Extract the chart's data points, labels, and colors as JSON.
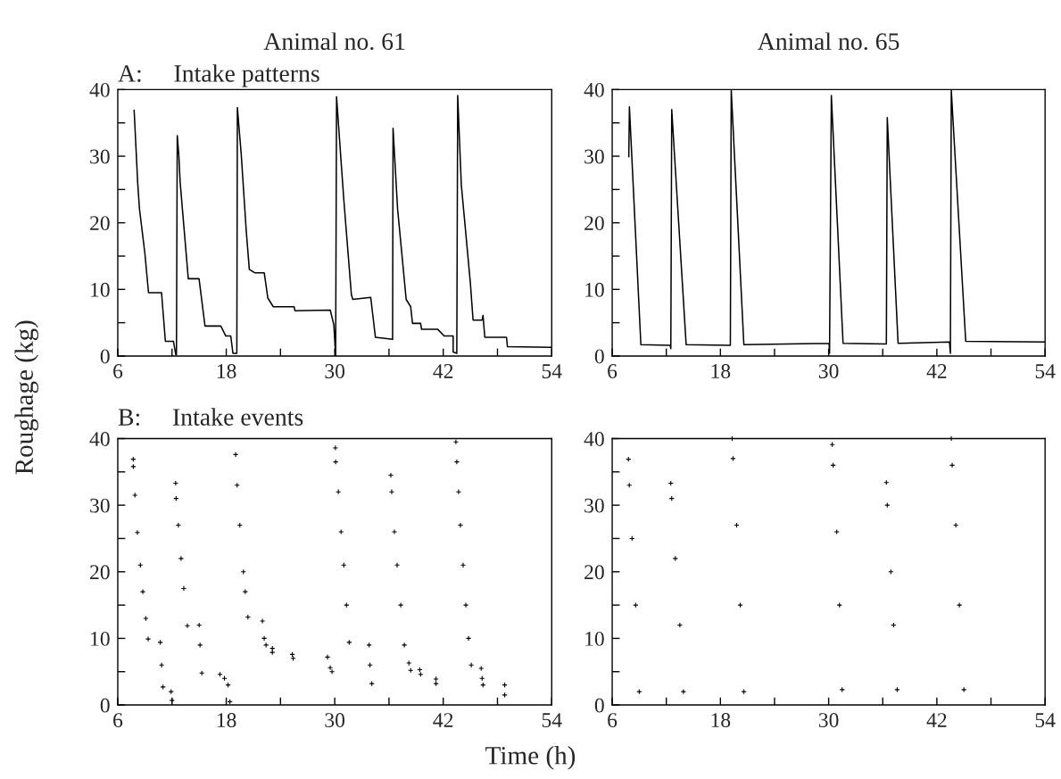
{
  "chart_data": [
    {
      "type": "line",
      "title": "Animal no. 61",
      "subtitle": "A:     Intake patterns",
      "ylabel": "Roughage (kg)",
      "xlim": [
        6,
        54
      ],
      "xticks": [
        6,
        {
          "value": 12,
          "label": null
        },
        18,
        {
          "value": 24,
          "label": null
        },
        30,
        {
          "value": 36,
          "label": null
        },
        42,
        {
          "value": 48,
          "label": null
        },
        54
      ],
      "ylim": [
        0,
        40
      ],
      "yticks": [
        0,
        {
          "value": 5,
          "label": null
        },
        10,
        {
          "value": 15,
          "label": null
        },
        20,
        {
          "value": 25,
          "label": null
        },
        30,
        {
          "value": 35,
          "label": null
        },
        40
      ],
      "grid": false,
      "legend": false,
      "marker": "none",
      "line_style": "solid",
      "series": [
        {
          "color": "#000000",
          "x": [
            7.81,
            8.2,
            8.4,
            9.0,
            9.4,
            10.84,
            11.27,
            12.16,
            12.42,
            12.49,
            12.58,
            12.75,
            12.9,
            13.34,
            13.8,
            14.99,
            15.65,
            17.4,
            17.95,
            18.5,
            18.74,
            19.1,
            19.17,
            19.23,
            19.66,
            20.2,
            20.55,
            21.14,
            22.2,
            22.6,
            23.2,
            25.5,
            25.6,
            29.5,
            29.9,
            30.1,
            30.2,
            31.0,
            31.84,
            32.0,
            33.98,
            34.5,
            36.4,
            36.45,
            36.95,
            37.9,
            38.4,
            38.6,
            39.5,
            39.6,
            41.4,
            42.1,
            43.1,
            43.1,
            43.5,
            43.6,
            44.0,
            45.0,
            45.3,
            46.3,
            46.4,
            46.6,
            49.0,
            49.1,
            54.0
          ],
          "values": [
            36.9,
            26.1,
            22.1,
            15.4,
            9.5,
            9.5,
            2.2,
            2.2,
            0.2,
            0.2,
            33.1,
            30.2,
            26.1,
            19.0,
            11.6,
            11.6,
            4.5,
            4.5,
            3.0,
            3.0,
            0.4,
            0.4,
            0.4,
            37.3,
            30.2,
            19.0,
            13.0,
            12.5,
            12.5,
            8.7,
            7.4,
            7.4,
            6.8,
            6.9,
            4.7,
            0,
            38.9,
            23.5,
            9.2,
            8.5,
            8.8,
            2.8,
            2.5,
            34.2,
            22.1,
            8.5,
            7.4,
            4.9,
            4.9,
            4.0,
            4.0,
            3.0,
            3.0,
            0.6,
            0.4,
            39.1,
            25.7,
            11.0,
            5.4,
            5.4,
            6.1,
            2.8,
            2.8,
            1.4,
            1.3
          ]
        }
      ]
    },
    {
      "type": "line",
      "title": "Animal no. 65",
      "xlim": [
        6,
        54
      ],
      "xticks": [
        6,
        {
          "value": 12,
          "label": null
        },
        18,
        {
          "value": 24,
          "label": null
        },
        30,
        {
          "value": 36,
          "label": null
        },
        42,
        {
          "value": 48,
          "label": null
        },
        54
      ],
      "ylim": [
        0,
        40
      ],
      "yticks": [
        0,
        {
          "value": 5,
          "label": null
        },
        10,
        {
          "value": 15,
          "label": null
        },
        20,
        {
          "value": 25,
          "label": null
        },
        30,
        {
          "value": 35,
          "label": null
        },
        40
      ],
      "grid": false,
      "legend": false,
      "marker": "none",
      "line_style": "solid",
      "series": [
        {
          "color": "#000000",
          "x": [
            7.84,
            7.91,
            9.18,
            12.44,
            12.5,
            12.6,
            14.2,
            19.1,
            19.2,
            20.6,
            30.05,
            30.1,
            30.3,
            31.6,
            36.4,
            36.5,
            37.7,
            43.4,
            43.5,
            43.6,
            45.2,
            54.0
          ],
          "values": [
            29.9,
            37.4,
            1.7,
            1.6,
            1.1,
            37.0,
            1.7,
            1.6,
            39.9,
            1.7,
            1.9,
            0.4,
            39.1,
            1.9,
            1.8,
            35.8,
            1.9,
            2.1,
            0.4,
            39.9,
            2.2,
            2.1
          ]
        }
      ]
    },
    {
      "type": "scatter",
      "title": "B:     Intake events",
      "xlabel": "Time (h)",
      "xlim": [
        6,
        54
      ],
      "xticks": [
        6,
        {
          "value": 12,
          "label": null
        },
        18,
        {
          "value": 24,
          "label": null
        },
        30,
        {
          "value": 36,
          "label": null
        },
        42,
        {
          "value": 48,
          "label": null
        },
        54
      ],
      "ylim": [
        0,
        40
      ],
      "yticks": [
        0,
        {
          "value": 5,
          "label": null
        },
        10,
        {
          "value": 15,
          "label": null
        },
        20,
        {
          "value": 25,
          "label": null
        },
        30,
        {
          "value": 35,
          "label": null
        },
        40
      ],
      "grid": false,
      "legend": false,
      "marker": "cross",
      "series": [
        {
          "color": "#000000",
          "x": [
            7.71,
            7.72,
            7.9,
            8.17,
            8.5,
            8.77,
            9.1,
            9.36,
            10.7,
            10.85,
            11.0,
            11.9,
            12.0,
            12.4,
            12.45,
            12.7,
            13.0,
            13.3,
            13.7,
            15.0,
            15.1,
            15.3,
            17.3,
            17.8,
            18.2,
            18.4,
            19.04,
            19.2,
            19.5,
            19.9,
            20.1,
            20.4,
            22.0,
            22.2,
            22.4,
            23.1,
            23.1,
            25.3,
            25.4,
            30.07,
            30.1,
            30.4,
            30.7,
            31.0,
            31.3,
            31.6,
            29.2,
            29.5,
            29.7,
            33.8,
            33.9,
            34.1,
            36.2,
            36.3,
            36.6,
            36.9,
            37.3,
            37.7,
            38.2,
            38.4,
            39.4,
            39.5,
            41.2,
            41.2,
            43.4,
            43.5,
            43.7,
            43.9,
            44.2,
            44.5,
            44.8,
            45.1,
            46.2,
            46.3,
            46.4,
            48.8,
            48.8
          ],
          "values": [
            36.9,
            35.8,
            31.5,
            25.9,
            21,
            17.0,
            13,
            9.9,
            9.4,
            6,
            2.7,
            2.0,
            0.7,
            33.3,
            31,
            27,
            22,
            17.5,
            11.9,
            12.0,
            9,
            4.8,
            4.6,
            4.0,
            3,
            0.5,
            37.6,
            33,
            27,
            20,
            17,
            13.2,
            12.6,
            10,
            9.0,
            8.5,
            7.9,
            7.6,
            7.0,
            38.6,
            36.5,
            32,
            26,
            21,
            15,
            9.4,
            7.2,
            5.6,
            5.0,
            9.0,
            6,
            3.2,
            34.5,
            32,
            26,
            21,
            15,
            9,
            6.3,
            5.2,
            5.3,
            4.6,
            3.9,
            3.2,
            39.5,
            36.5,
            32,
            27,
            21,
            15,
            10,
            6.0,
            5.5,
            4,
            3.0,
            3.0,
            1.5
          ]
        }
      ]
    },
    {
      "type": "scatter",
      "xlim": [
        6,
        54
      ],
      "xticks": [
        6,
        {
          "value": 12,
          "label": null
        },
        18,
        {
          "value": 24,
          "label": null
        },
        30,
        {
          "value": 36,
          "label": null
        },
        42,
        {
          "value": 48,
          "label": null
        },
        54
      ],
      "ylim": [
        0,
        40
      ],
      "yticks": [
        0,
        {
          "value": 5,
          "label": null
        },
        10,
        {
          "value": 15,
          "label": null
        },
        20,
        {
          "value": 25,
          "label": null
        },
        30,
        {
          "value": 35,
          "label": null
        },
        40
      ],
      "grid": false,
      "legend": false,
      "marker": "cross",
      "series": [
        {
          "color": "#000000",
          "x": [
            7.8,
            7.9,
            8.2,
            8.6,
            9.0,
            12.5,
            12.6,
            13.0,
            13.5,
            13.9,
            19.3,
            19.4,
            19.8,
            20.2,
            20.6,
            30.4,
            30.5,
            30.9,
            31.2,
            31.5,
            36.4,
            36.5,
            36.9,
            37.2,
            37.6,
            43.6,
            43.7,
            44.1,
            44.5,
            45.0
          ],
          "values": [
            36.9,
            33,
            25,
            15,
            2.0,
            33.3,
            31,
            22,
            12,
            2.0,
            40,
            37,
            27,
            15,
            2.0,
            39.1,
            36,
            26,
            15,
            2.3,
            33.4,
            30,
            20,
            12,
            2.3,
            40,
            36,
            27,
            15,
            2.3
          ]
        }
      ]
    }
  ]
}
